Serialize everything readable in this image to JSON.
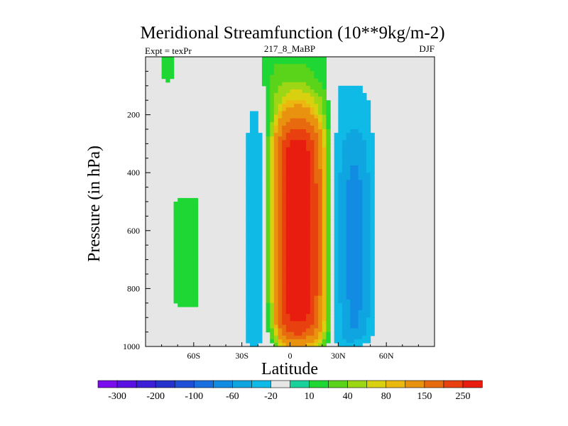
{
  "chart_data": {
    "type": "heatmap",
    "title": "Meridional Streamfunction (10**9kg/m-2)",
    "left_label": "Expt = texPr",
    "center_label": "217_8_MaBP",
    "right_label": "DJF",
    "xlabel": "Latitude",
    "ylabel": "Pressure (in hPa)",
    "xlim": [
      -90,
      90
    ],
    "ylim": [
      0,
      1000
    ],
    "y_inverted": true,
    "x_ticks": [
      {
        "value": -60,
        "label": "60S"
      },
      {
        "value": -30,
        "label": "30S"
      },
      {
        "value": 0,
        "label": "0"
      },
      {
        "value": 30,
        "label": "30N"
      },
      {
        "value": 60,
        "label": "60N"
      }
    ],
    "y_ticks": [
      {
        "value": 200,
        "label": "200"
      },
      {
        "value": 400,
        "label": "400"
      },
      {
        "value": 600,
        "label": "600"
      },
      {
        "value": 800,
        "label": "800"
      },
      {
        "value": 1000,
        "label": "1000"
      }
    ],
    "background_color": "#e6e6e6",
    "colorbar": {
      "colors": [
        "#7a0ded",
        "#5a12e3",
        "#3c1fd6",
        "#2632cc",
        "#1f4fd6",
        "#1a6fe0",
        "#128ce3",
        "#0fa5e0",
        "#0fbbe6",
        "#e6e6e6",
        "#19d19a",
        "#1ed634",
        "#5ad41a",
        "#9cd614",
        "#d9d10f",
        "#eab80f",
        "#e8920f",
        "#e86a0f",
        "#e8400f",
        "#e81c0f"
      ],
      "labels": [
        "-300",
        "-200",
        "-100",
        "-60",
        "-20",
        "10",
        "40",
        "80",
        "150",
        "250"
      ]
    },
    "grid_lat": [
      -90,
      -75,
      -70,
      -60,
      -50,
      -45,
      -40,
      -35,
      -30,
      -25,
      -20,
      -15,
      -10,
      -5,
      0,
      5,
      10,
      15,
      20,
      25,
      30,
      35,
      40,
      45,
      50,
      55,
      60,
      65,
      70,
      75,
      90
    ],
    "grid_p": [
      1000,
      975,
      950,
      925,
      900,
      850,
      800,
      750,
      700,
      650,
      600,
      550,
      500,
      450,
      400,
      350,
      300,
      250,
      200,
      150,
      100,
      75,
      50,
      30,
      10
    ],
    "field": [
      [
        0,
        0,
        0,
        0,
        0,
        0,
        0,
        0,
        0,
        -25,
        -25,
        0,
        0,
        80,
        100,
        100,
        90,
        60,
        30,
        0,
        -25,
        -35,
        -30,
        -20,
        0,
        0,
        0,
        0,
        0,
        0,
        0
      ],
      [
        0,
        0,
        0,
        0,
        0,
        0,
        0,
        0,
        0,
        -30,
        -30,
        0,
        25,
        120,
        150,
        160,
        140,
        120,
        60,
        0,
        -30,
        -45,
        -45,
        -35,
        -25,
        0,
        0,
        0,
        0,
        0,
        0
      ],
      [
        0,
        0,
        0,
        0,
        0,
        0,
        0,
        0,
        0,
        -30,
        -30,
        0,
        40,
        160,
        210,
        230,
        200,
        150,
        80,
        0,
        -35,
        -55,
        -60,
        -50,
        -30,
        0,
        0,
        0,
        0,
        0,
        0
      ],
      [
        0,
        0,
        0,
        0,
        0,
        0,
        0,
        0,
        0,
        -30,
        -30,
        0,
        70,
        190,
        230,
        245,
        240,
        190,
        100,
        0,
        -35,
        -55,
        -65,
        -55,
        -35,
        0,
        0,
        0,
        0,
        0,
        0
      ],
      [
        0,
        0,
        0,
        0,
        0,
        0,
        0,
        0,
        0,
        -30,
        -30,
        0,
        70,
        210,
        260,
        270,
        260,
        210,
        120,
        0,
        -35,
        -55,
        -65,
        -55,
        -35,
        0,
        0,
        0,
        0,
        0,
        0
      ],
      [
        0,
        0,
        15,
        15,
        0,
        0,
        0,
        0,
        0,
        -30,
        -30,
        0,
        80,
        220,
        280,
        290,
        270,
        220,
        120,
        0,
        -35,
        -55,
        -70,
        -60,
        -35,
        0,
        0,
        0,
        0,
        0,
        0
      ],
      [
        0,
        0,
        15,
        15,
        0,
        0,
        0,
        0,
        0,
        -30,
        -30,
        0,
        90,
        230,
        295,
        300,
        290,
        230,
        130,
        0,
        -35,
        -60,
        -70,
        -60,
        -35,
        0,
        0,
        0,
        0,
        0,
        0
      ],
      [
        0,
        0,
        15,
        15,
        0,
        0,
        0,
        0,
        0,
        -30,
        -30,
        0,
        90,
        230,
        295,
        305,
        295,
        230,
        130,
        0,
        -35,
        -60,
        -70,
        -60,
        -35,
        0,
        0,
        0,
        0,
        0,
        0
      ],
      [
        0,
        0,
        15,
        15,
        0,
        0,
        0,
        0,
        0,
        -30,
        -30,
        0,
        100,
        230,
        300,
        310,
        295,
        230,
        130,
        0,
        -35,
        -60,
        -70,
        -60,
        -35,
        0,
        0,
        0,
        0,
        0,
        0
      ],
      [
        0,
        0,
        15,
        15,
        0,
        0,
        0,
        0,
        0,
        -30,
        -30,
        0,
        100,
        230,
        300,
        315,
        300,
        230,
        130,
        0,
        -35,
        -60,
        -75,
        -60,
        -35,
        0,
        0,
        0,
        0,
        0,
        0
      ],
      [
        0,
        0,
        15,
        15,
        0,
        0,
        0,
        0,
        0,
        -30,
        -35,
        0,
        100,
        230,
        300,
        325,
        300,
        230,
        130,
        0,
        -35,
        -60,
        -75,
        -60,
        -35,
        0,
        0,
        0,
        0,
        0,
        0
      ],
      [
        0,
        0,
        15,
        15,
        0,
        0,
        0,
        0,
        0,
        -30,
        -35,
        0,
        100,
        230,
        300,
        315,
        300,
        230,
        130,
        0,
        -35,
        -60,
        -75,
        -60,
        -35,
        0,
        0,
        0,
        0,
        0,
        0
      ],
      [
        0,
        0,
        15,
        15,
        0,
        0,
        0,
        0,
        0,
        -30,
        -35,
        0,
        100,
        230,
        300,
        310,
        295,
        230,
        130,
        0,
        -35,
        -60,
        -70,
        -60,
        -35,
        0,
        0,
        0,
        0,
        0,
        0
      ],
      [
        0,
        0,
        0,
        0,
        0,
        0,
        0,
        0,
        0,
        -30,
        -35,
        0,
        100,
        225,
        295,
        305,
        295,
        225,
        130,
        0,
        -35,
        -60,
        -70,
        -60,
        -35,
        0,
        0,
        0,
        0,
        0,
        0
      ],
      [
        0,
        0,
        0,
        0,
        0,
        0,
        0,
        0,
        0,
        -30,
        -35,
        0,
        100,
        220,
        290,
        295,
        285,
        220,
        130,
        0,
        -35,
        -55,
        -65,
        -55,
        -35,
        0,
        0,
        0,
        0,
        0,
        0
      ],
      [
        0,
        0,
        0,
        0,
        0,
        0,
        0,
        0,
        0,
        -30,
        -30,
        0,
        100,
        210,
        280,
        285,
        275,
        210,
        120,
        0,
        -30,
        -50,
        -60,
        -50,
        -30,
        0,
        0,
        0,
        0,
        0,
        0
      ],
      [
        0,
        0,
        0,
        0,
        0,
        0,
        0,
        0,
        0,
        -30,
        -30,
        0,
        90,
        190,
        260,
        275,
        260,
        190,
        100,
        0,
        -30,
        -45,
        -55,
        -45,
        -30,
        0,
        0,
        0,
        0,
        0,
        0
      ],
      [
        0,
        0,
        0,
        0,
        0,
        0,
        0,
        0,
        0,
        -25,
        -25,
        0,
        70,
        160,
        200,
        210,
        200,
        160,
        80,
        0,
        -25,
        -35,
        -40,
        -35,
        -25,
        0,
        0,
        0,
        0,
        0,
        0
      ],
      [
        0,
        0,
        0,
        0,
        0,
        0,
        0,
        0,
        0,
        -25,
        -25,
        0,
        40,
        110,
        130,
        140,
        130,
        90,
        50,
        0,
        -25,
        -30,
        -30,
        -30,
        -25,
        0,
        0,
        0,
        0,
        0,
        0
      ],
      [
        0,
        0,
        0,
        -15,
        -15,
        0,
        0,
        0,
        0,
        0,
        0,
        0,
        40,
        60,
        80,
        80,
        75,
        60,
        40,
        0,
        -25,
        -25,
        -25,
        -25,
        -20,
        0,
        0,
        0,
        0,
        0,
        0
      ],
      [
        0,
        0,
        0,
        -15,
        -15,
        0,
        0,
        0,
        0,
        0,
        0,
        15,
        30,
        45,
        50,
        50,
        45,
        30,
        20,
        0,
        -20,
        -20,
        -20,
        -20,
        0,
        0,
        0,
        0,
        0,
        0,
        0
      ],
      [
        0,
        15,
        0,
        -15,
        -15,
        0,
        0,
        0,
        0,
        0,
        0,
        15,
        25,
        35,
        35,
        30,
        30,
        20,
        15,
        0,
        -20,
        -20,
        -20,
        0,
        0,
        0,
        0,
        0,
        0,
        0,
        0
      ],
      [
        0,
        15,
        0,
        -15,
        -15,
        0,
        0,
        0,
        0,
        0,
        0,
        15,
        20,
        25,
        25,
        25,
        25,
        20,
        15,
        0,
        -20,
        -20,
        -20,
        0,
        0,
        0,
        0,
        0,
        0,
        0,
        0
      ],
      [
        0,
        15,
        0,
        -15,
        -15,
        0,
        0,
        0,
        0,
        0,
        0,
        15,
        20,
        20,
        20,
        20,
        20,
        15,
        15,
        0,
        -20,
        -20,
        -15,
        0,
        0,
        0,
        0,
        0,
        0,
        0,
        0
      ],
      [
        0,
        15,
        0,
        -15,
        -15,
        0,
        0,
        0,
        0,
        0,
        0,
        15,
        15,
        15,
        15,
        15,
        15,
        15,
        15,
        0,
        -20,
        -20,
        -15,
        0,
        0,
        0,
        0,
        0,
        0,
        0,
        0
      ]
    ]
  }
}
